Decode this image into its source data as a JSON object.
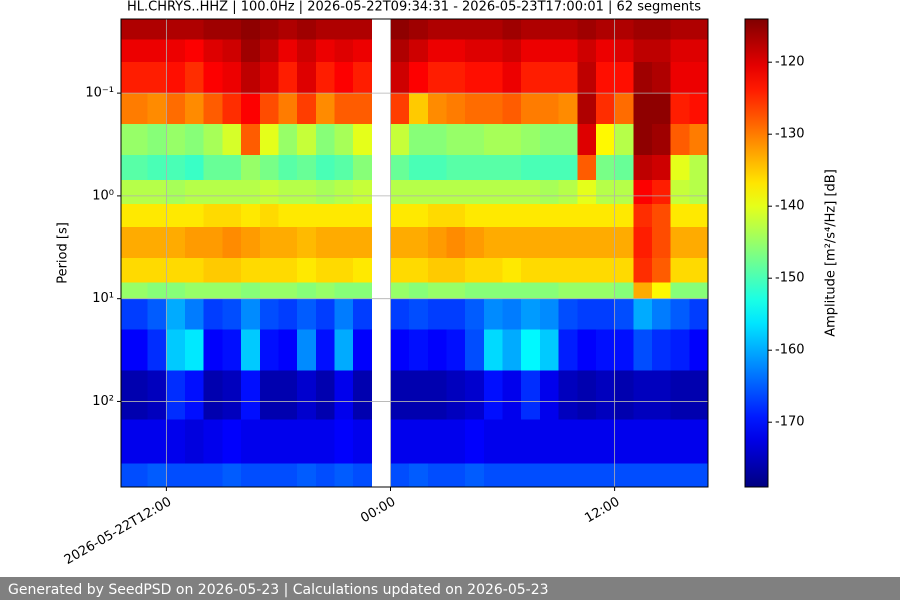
{
  "chart_data": {
    "type": "heatmap",
    "title": "HL.CHRYS..HHZ | 100.0Hz | 2026-05-22T09:34:31 - 2026-05-23T17:00:01 | 62 segments",
    "ylabel": "Period [s]",
    "colorbar_label": "Amplitude [m²/s⁴/Hz] [dB]",
    "colormap": "jet",
    "ylog": true,
    "yinverted": true,
    "grid": true,
    "xlim": [
      9.57,
      41.0
    ],
    "xticks": [
      {
        "value": 12,
        "label": "2026-05-22T12:00"
      },
      {
        "value": 24,
        "label": "00:00"
      },
      {
        "value": 36,
        "label": "12:00"
      }
    ],
    "ylim": [
      0.019,
      680
    ],
    "yticks": [
      {
        "value": 0.1,
        "label": "10⁻¹"
      },
      {
        "value": 1,
        "label": "10⁰"
      },
      {
        "value": 10,
        "label": "10¹"
      },
      {
        "value": 100,
        "label": "10²"
      }
    ],
    "clim": [
      -179,
      -114
    ],
    "cticks": [
      -120,
      -130,
      -140,
      -150,
      -160,
      -170
    ],
    "x": [
      9.57,
      11,
      12,
      13,
      14,
      15,
      16,
      17,
      18,
      19,
      20,
      21,
      22,
      23,
      24,
      25,
      26,
      27,
      28,
      29,
      30,
      31,
      32,
      33,
      34,
      35,
      36,
      37,
      38,
      39,
      40,
      41
    ],
    "y": [
      0.019,
      0.03,
      0.05,
      0.1,
      0.2,
      0.4,
      0.7,
      1.2,
      2,
      4,
      7,
      10,
      20,
      50,
      150,
      400,
      680
    ],
    "z": [
      [
        -117,
        -121,
        -124,
        -130,
        -145,
        -149,
        -143,
        -137,
        -133,
        -136,
        -145,
        -167,
        -171,
        -176,
        -172,
        -166
      ],
      [
        -117,
        -121,
        -124,
        -131,
        -146,
        -150,
        -143,
        -137,
        -133,
        -136,
        -146,
        -165,
        -168,
        -175,
        -172,
        -165
      ],
      [
        -117,
        -121,
        -123,
        -129,
        -145,
        -150,
        -144,
        -137,
        -133,
        -136,
        -146,
        -160,
        -158,
        -168,
        -172,
        -166
      ],
      [
        -117,
        -122,
        -125,
        -131,
        -146,
        -151,
        -143,
        -137,
        -132,
        -136,
        -145,
        -163,
        -156,
        -170,
        -173,
        -166
      ],
      [
        -116,
        -120,
        -122,
        -128,
        -144,
        -148,
        -143,
        -136,
        -132,
        -135,
        -145,
        -167,
        -171,
        -176,
        -172,
        -166
      ],
      [
        -116,
        -119,
        -121,
        -125,
        -141,
        -148,
        -143,
        -136,
        -131,
        -135,
        -145,
        -166,
        -170,
        -175,
        -171,
        -165
      ],
      [
        -115,
        -116,
        -118,
        -122,
        -128,
        -145,
        -143,
        -137,
        -132,
        -136,
        -146,
        -162,
        -158,
        -170,
        -172,
        -166
      ],
      [
        -116,
        -118,
        -120,
        -127,
        -140,
        -147,
        -142,
        -136,
        -133,
        -136,
        -145,
        -166,
        -170,
        -176,
        -172,
        -166
      ],
      [
        -117,
        -121,
        -124,
        -130,
        -145,
        -149,
        -143,
        -137,
        -133,
        -136,
        -145,
        -167,
        -171,
        -176,
        -172,
        -166
      ],
      [
        -116,
        -119,
        -120,
        -126,
        -142,
        -148,
        -143,
        -137,
        -134,
        -137,
        -146,
        -165,
        -162,
        -174,
        -172,
        -165
      ],
      [
        -117,
        -121,
        -124,
        -131,
        -146,
        -150,
        -144,
        -137,
        -133,
        -136,
        -145,
        -167,
        -170,
        -176,
        -172,
        -166
      ],
      [
        -117,
        -120,
        -122,
        -128,
        -144,
        -149,
        -143,
        -137,
        -133,
        -136,
        -146,
        -163,
        -160,
        -172,
        -171,
        -165
      ],
      [
        -117,
        -121,
        -124,
        -128,
        -140,
        -146,
        -142,
        -137,
        -133,
        -137,
        -146,
        -167,
        -171,
        -176,
        -172,
        -166
      ],
      null,
      [
        -115,
        -117,
        -119,
        -126,
        -142,
        -148,
        -143,
        -137,
        -133,
        -136,
        -145,
        -167,
        -171,
        -176,
        -172,
        -166
      ],
      [
        -116,
        -119,
        -122,
        -135,
        -146,
        -150,
        -143,
        -137,
        -133,
        -136,
        -146,
        -166,
        -170,
        -176,
        -172,
        -165
      ],
      [
        -117,
        -121,
        -124,
        -131,
        -146,
        -150,
        -143,
        -136,
        -132,
        -135,
        -145,
        -167,
        -171,
        -176,
        -172,
        -166
      ],
      [
        -117,
        -121,
        -124,
        -130,
        -145,
        -149,
        -143,
        -136,
        -131,
        -135,
        -145,
        -167,
        -170,
        -175,
        -172,
        -166
      ],
      [
        -117,
        -120,
        -123,
        -129,
        -145,
        -149,
        -143,
        -137,
        -132,
        -136,
        -146,
        -165,
        -166,
        -174,
        -171,
        -165
      ],
      [
        -117,
        -120,
        -123,
        -129,
        -144,
        -149,
        -143,
        -137,
        -133,
        -136,
        -146,
        -162,
        -157,
        -170,
        -172,
        -166
      ],
      [
        -116,
        -119,
        -121,
        -128,
        -144,
        -149,
        -143,
        -137,
        -133,
        -137,
        -146,
        -163,
        -160,
        -172,
        -172,
        -166
      ],
      [
        -117,
        -121,
        -124,
        -130,
        -145,
        -150,
        -143,
        -137,
        -133,
        -136,
        -146,
        -161,
        -155,
        -168,
        -172,
        -166
      ],
      [
        -117,
        -121,
        -124,
        -130,
        -146,
        -150,
        -144,
        -137,
        -133,
        -136,
        -146,
        -162,
        -158,
        -172,
        -172,
        -166
      ],
      [
        -117,
        -121,
        -124,
        -131,
        -146,
        -150,
        -143,
        -137,
        -133,
        -136,
        -145,
        -166,
        -169,
        -175,
        -172,
        -166
      ],
      [
        -116,
        -119,
        -118,
        -117,
        -120,
        -128,
        -140,
        -137,
        -133,
        -136,
        -145,
        -167,
        -171,
        -176,
        -172,
        -166
      ],
      [
        -117,
        -121,
        -123,
        -125,
        -138,
        -147,
        -143,
        -137,
        -133,
        -136,
        -145,
        -167,
        -170,
        -175,
        -172,
        -166
      ],
      [
        -117,
        -120,
        -123,
        -129,
        -143,
        -148,
        -143,
        -137,
        -133,
        -136,
        -146,
        -166,
        -170,
        -176,
        -172,
        -166
      ],
      [
        -116,
        -118,
        -116,
        -115,
        -115,
        -118,
        -122,
        -125,
        -124,
        -125,
        -133,
        -160,
        -166,
        -175,
        -172,
        -166
      ],
      [
        -116,
        -118,
        -117,
        -115,
        -116,
        -119,
        -124,
        -127,
        -127,
        -128,
        -138,
        -163,
        -168,
        -175,
        -172,
        -166
      ],
      [
        -117,
        -120,
        -121,
        -124,
        -128,
        -140,
        -142,
        -137,
        -133,
        -136,
        -146,
        -165,
        -169,
        -176,
        -172,
        -166
      ],
      [
        -117,
        -120,
        -121,
        -123,
        -130,
        -143,
        -143,
        -137,
        -133,
        -136,
        -146,
        -167,
        -171,
        -176,
        -172,
        -166
      ]
    ]
  },
  "footer": "Generated by SeedPSD on 2026-05-23 | Calculations updated on 2026-05-23"
}
